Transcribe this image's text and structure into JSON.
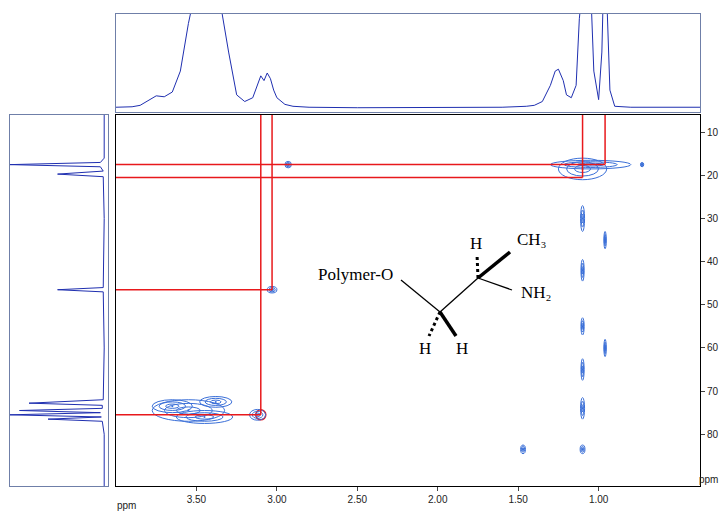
{
  "chart_data": {
    "type": "contour",
    "xlabel": "ppm",
    "ylabel": "ppm",
    "xlim": [
      4.0,
      0.37
    ],
    "ylim": [
      92,
      6
    ],
    "xticks": [
      {
        "value": 3.5,
        "label": "3.50"
      },
      {
        "value": 3.0,
        "label": "3.00"
      },
      {
        "value": 2.5,
        "label": "2.50"
      },
      {
        "value": 2.0,
        "label": "2.00"
      },
      {
        "value": 1.5,
        "label": "1.50"
      },
      {
        "value": 1.0,
        "label": "1.00"
      }
    ],
    "yticks": [
      10,
      20,
      30,
      40,
      50,
      60,
      70,
      80
    ],
    "grid": false,
    "color": "#3a6fd8",
    "peaks": [
      {
        "x": 3.55,
        "y": 74.5,
        "w": 0.45,
        "h": 5
      },
      {
        "x": 3.45,
        "y": 76,
        "w": 0.35,
        "h": 3
      },
      {
        "x": 3.65,
        "y": 73.5,
        "w": 0.25,
        "h": 3
      },
      {
        "x": 3.38,
        "y": 72.5,
        "w": 0.2,
        "h": 2.5
      },
      {
        "x": 3.12,
        "y": 75.5,
        "w": 0.1,
        "h": 2.5
      },
      {
        "x": 3.03,
        "y": 46.5,
        "w": 0.06,
        "h": 1.5
      },
      {
        "x": 2.93,
        "y": 17.5,
        "w": 0.04,
        "h": 1.5
      },
      {
        "x": 1.1,
        "y": 18.5,
        "w": 0.3,
        "h": 5
      },
      {
        "x": 1.05,
        "y": 17.5,
        "w": 0.5,
        "h": 2
      },
      {
        "x": 1.1,
        "y": 30,
        "w": 0.025,
        "h": 6
      },
      {
        "x": 1.1,
        "y": 42,
        "w": 0.02,
        "h": 5
      },
      {
        "x": 1.1,
        "y": 55,
        "w": 0.02,
        "h": 4
      },
      {
        "x": 1.1,
        "y": 65,
        "w": 0.02,
        "h": 5
      },
      {
        "x": 1.1,
        "y": 74,
        "w": 0.025,
        "h": 5
      },
      {
        "x": 0.96,
        "y": 35,
        "w": 0.015,
        "h": 4
      },
      {
        "x": 0.96,
        "y": 60,
        "w": 0.015,
        "h": 4
      },
      {
        "x": 1.47,
        "y": 83.5,
        "w": 0.03,
        "h": 2
      },
      {
        "x": 1.1,
        "y": 83.5,
        "w": 0.03,
        "h": 2
      },
      {
        "x": 0.73,
        "y": 17.5,
        "w": 0.02,
        "h": 1
      }
    ],
    "guides": {
      "color": "#e8191c",
      "points": [
        {
          "x": 3.1,
          "y": 75.5
        },
        {
          "x": 3.03,
          "y": 46.5
        },
        {
          "x": 1.1,
          "y": 20.5
        },
        {
          "x": 0.96,
          "y": 17.5
        }
      ],
      "circles": [
        {
          "x": 3.1,
          "y": 75.5
        }
      ]
    },
    "projection_top": {
      "color": "#1f2fb0",
      "ylim": [
        -3,
        100
      ],
      "x": [
        4.0,
        3.9,
        3.85,
        3.8,
        3.75,
        3.7,
        3.65,
        3.6,
        3.55,
        3.5,
        3.45,
        3.4,
        3.35,
        3.3,
        3.25,
        3.2,
        3.15,
        3.12,
        3.1,
        3.08,
        3.06,
        3.04,
        3.02,
        3.0,
        2.95,
        2.9,
        2.8,
        2.5,
        2.0,
        1.6,
        1.45,
        1.4,
        1.35,
        1.3,
        1.27,
        1.25,
        1.22,
        1.2,
        1.17,
        1.14,
        1.12,
        1.1,
        1.08,
        1.06,
        1.05,
        1.03,
        1.0,
        0.98,
        0.97,
        0.95,
        0.93,
        0.9,
        0.8,
        0.6,
        0.37
      ],
      "values": [
        2,
        2.5,
        4,
        9,
        14,
        13,
        18,
        40,
        90,
        130,
        130,
        130,
        110,
        60,
        15,
        8,
        12,
        25,
        35,
        30,
        38,
        32,
        20,
        12,
        5,
        3,
        2,
        1.5,
        1.5,
        2,
        3,
        4,
        8,
        25,
        40,
        42,
        30,
        15,
        12,
        25,
        95,
        130,
        110,
        100,
        130,
        40,
        10,
        60,
        130,
        120,
        20,
        3,
        2,
        2,
        2
      ]
    },
    "projection_left": {
      "color": "#1f2fb0",
      "xlim": [
        100,
        -3
      ],
      "y": [
        6,
        16,
        17,
        17.5,
        18,
        19,
        19.7,
        20.3,
        30,
        46,
        46.5,
        47,
        60,
        72,
        72.8,
        73.3,
        74,
        74.5,
        75,
        75.5,
        76,
        76.5,
        77,
        80,
        92
      ],
      "values": [
        1,
        1,
        5,
        100,
        5,
        2,
        50,
        2,
        1,
        2,
        50,
        2,
        1,
        2,
        80,
        3,
        3,
        90,
        5,
        100,
        4,
        60,
        3,
        1,
        1
      ]
    },
    "structure": {
      "labels": [
        "Polymer-O",
        "H",
        "CH₃",
        "NH₂",
        "H",
        "H"
      ]
    }
  }
}
